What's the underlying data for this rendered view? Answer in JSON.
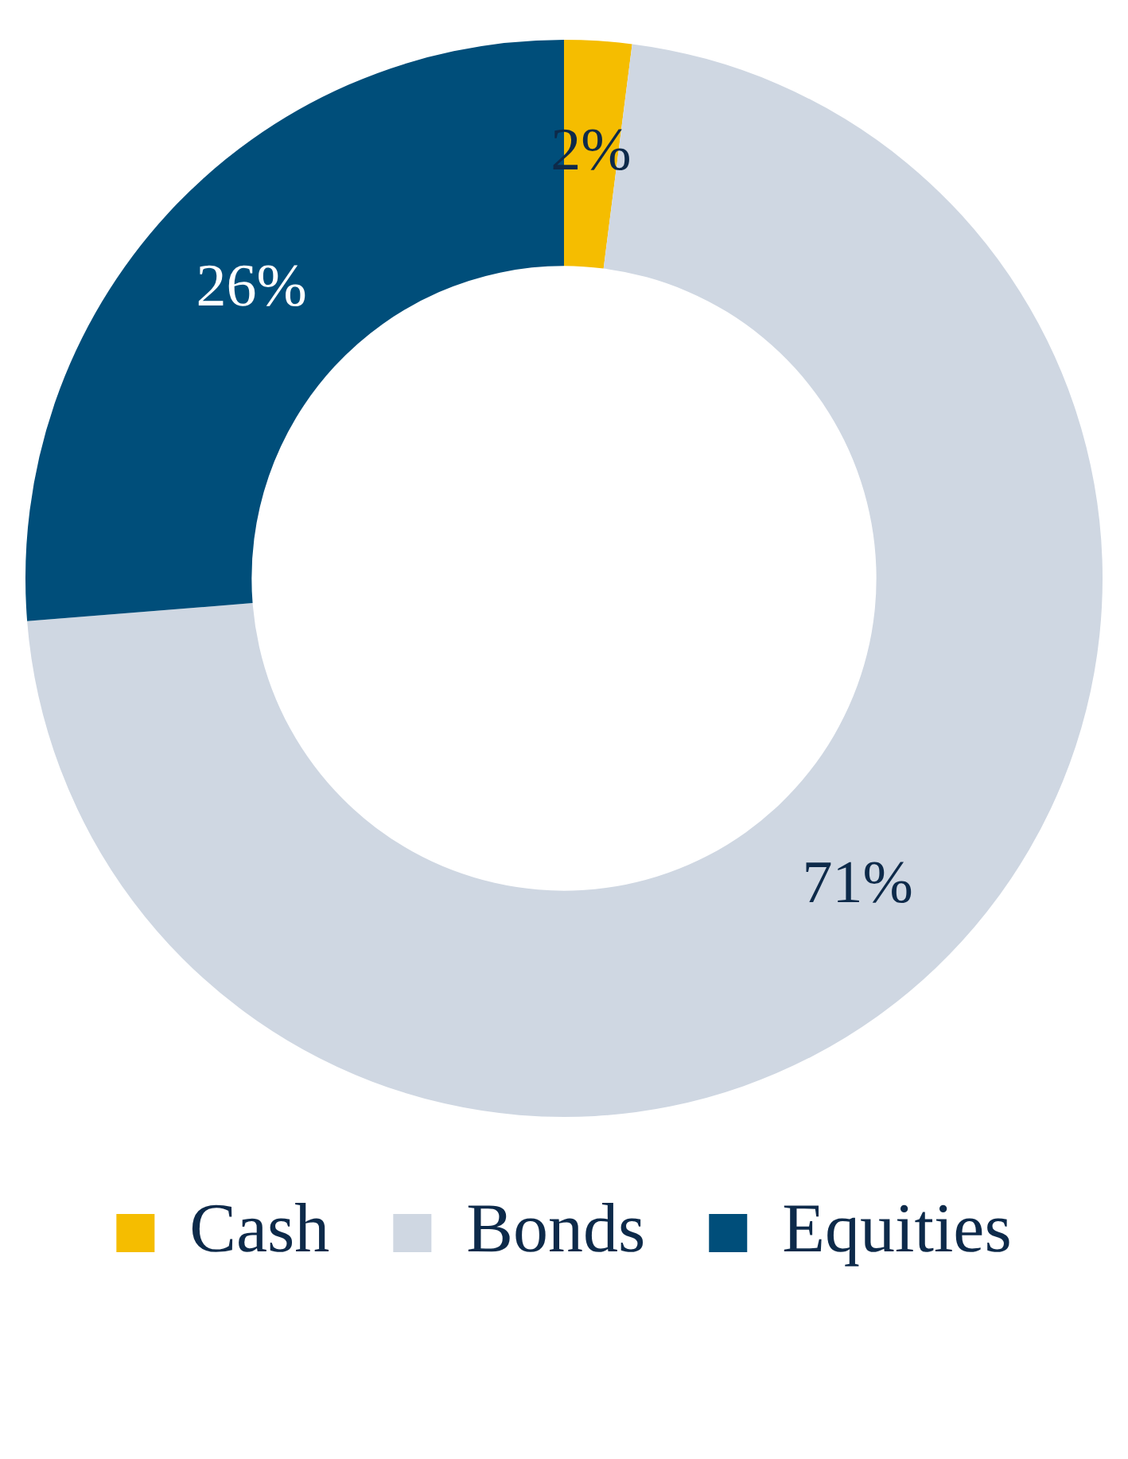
{
  "chart_data": {
    "type": "donut",
    "categories": [
      "Cash",
      "Bonds",
      "Equities"
    ],
    "values": [
      2,
      71,
      26
    ],
    "colors": [
      "#f5bd00",
      "#cfd7e2",
      "#004e7a"
    ],
    "value_labels": [
      "2%",
      "71%",
      "26%"
    ],
    "legend": "bottom"
  }
}
